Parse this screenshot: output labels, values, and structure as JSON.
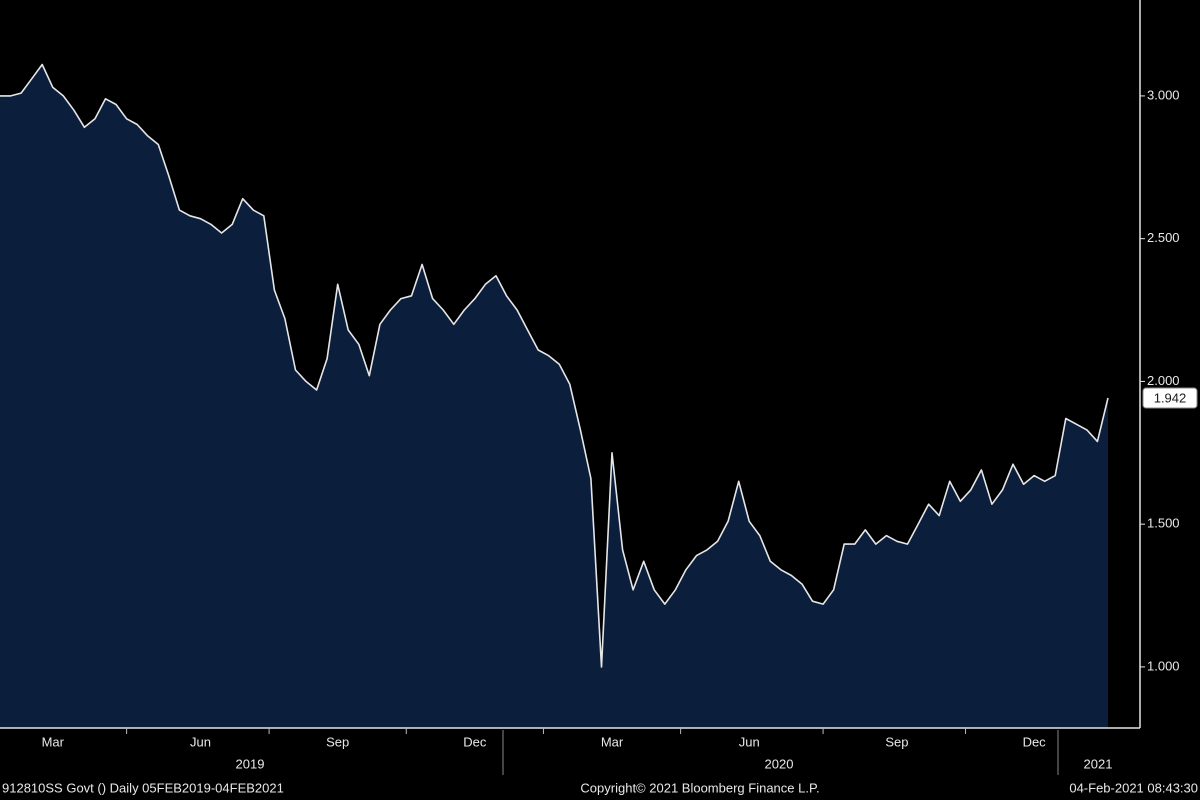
{
  "chart_data": {
    "type": "area",
    "color": "#0b1f3d",
    "line_color": "#e6e6e6",
    "categories": [
      null,
      null,
      null,
      null,
      null,
      "Mar",
      null,
      null,
      null,
      null,
      null,
      null,
      null,
      null,
      null,
      null,
      null,
      null,
      null,
      "Jun",
      null,
      null,
      null,
      null,
      null,
      null,
      null,
      null,
      null,
      null,
      null,
      null,
      "Sep",
      null,
      null,
      null,
      null,
      null,
      null,
      null,
      null,
      null,
      null,
      null,
      null,
      "Dec",
      null,
      null,
      null,
      null,
      null,
      null,
      null,
      null,
      null,
      null,
      null,
      null,
      "Mar",
      null,
      null,
      null,
      null,
      null,
      null,
      null,
      null,
      null,
      null,
      null,
      null,
      "Jun",
      null,
      null,
      null,
      null,
      null,
      null,
      null,
      null,
      null,
      null,
      null,
      null,
      null,
      "Sep",
      null,
      null,
      null,
      null,
      null,
      null,
      null,
      null,
      null,
      null,
      null,
      null,
      "Dec",
      null,
      null,
      null,
      null,
      null,
      null,
      null
    ],
    "values": [
      3.0,
      3.0,
      3.01,
      3.06,
      3.11,
      3.03,
      3.0,
      2.95,
      2.89,
      2.92,
      2.99,
      2.97,
      2.92,
      2.9,
      2.86,
      2.83,
      2.72,
      2.6,
      2.58,
      2.57,
      2.55,
      2.52,
      2.55,
      2.64,
      2.6,
      2.58,
      2.32,
      2.22,
      2.04,
      2.0,
      1.97,
      2.08,
      2.34,
      2.18,
      2.13,
      2.02,
      2.2,
      2.25,
      2.29,
      2.3,
      2.41,
      2.29,
      2.25,
      2.2,
      2.25,
      2.29,
      2.34,
      2.37,
      2.3,
      2.25,
      2.18,
      2.11,
      2.09,
      2.06,
      1.99,
      1.83,
      1.66,
      1.0,
      1.75,
      1.41,
      1.27,
      1.37,
      1.27,
      1.22,
      1.27,
      1.34,
      1.39,
      1.41,
      1.44,
      1.51,
      1.65,
      1.51,
      1.46,
      1.37,
      1.34,
      1.32,
      1.29,
      1.23,
      1.22,
      1.27,
      1.43,
      1.43,
      1.48,
      1.43,
      1.46,
      1.44,
      1.43,
      1.5,
      1.57,
      1.53,
      1.65,
      1.58,
      1.62,
      1.69,
      1.57,
      1.62,
      1.71,
      1.64,
      1.67,
      1.65,
      1.67,
      1.87,
      1.85,
      1.83,
      1.79,
      1.942
    ],
    "year_labels": [
      "2019",
      "2020",
      "2021"
    ],
    "ylim": [
      0.786,
      3.336
    ],
    "yticks": [
      {
        "value": 1,
        "label": "1.000"
      },
      {
        "value": 1.5,
        "label": "1.500"
      },
      {
        "value": 2,
        "label": "2.000"
      },
      {
        "value": 2.5,
        "label": "2.500"
      },
      {
        "value": 3,
        "label": "3.000"
      }
    ],
    "footer": {
      "left": "912810SS Govt ()  Daily 05FEB2019-04FEB2021",
      "center": "Copyright© 2021 Bloomberg Finance L.P.",
      "right": "04-Feb-2021 08:43:30"
    }
  }
}
